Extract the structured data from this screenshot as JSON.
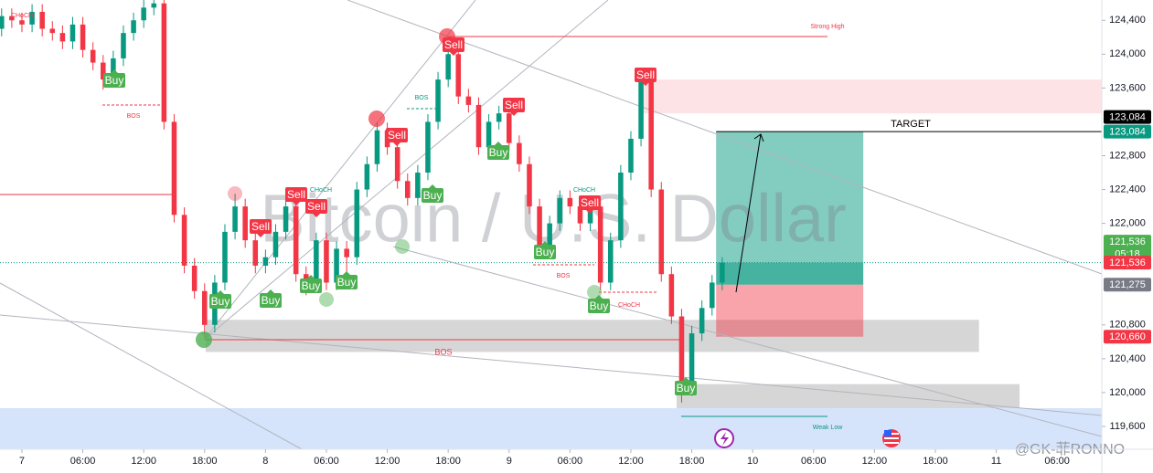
{
  "chart_data": {
    "type": "candlestick",
    "title": "Bitcoin / U.S. Dollar",
    "xlim": [
      -2.16,
      106.4
    ],
    "ylim": [
      119330,
      124640
    ],
    "xticks": [
      {
        "value": 0,
        "label": "7"
      },
      {
        "value": 6,
        "label": "06:00"
      },
      {
        "value": 12,
        "label": "12:00"
      },
      {
        "value": 18,
        "label": "18:00"
      },
      {
        "value": 24,
        "label": "8"
      },
      {
        "value": 30,
        "label": "06:00"
      },
      {
        "value": 36,
        "label": "12:00"
      },
      {
        "value": 42,
        "label": "18:00"
      },
      {
        "value": 48,
        "label": "9"
      },
      {
        "value": 54,
        "label": "06:00"
      },
      {
        "value": 60,
        "label": "12:00"
      },
      {
        "value": 66,
        "label": "18:00"
      },
      {
        "value": 72,
        "label": "10"
      },
      {
        "value": 78,
        "label": "06:00"
      },
      {
        "value": 84,
        "label": "12:00"
      },
      {
        "value": 90,
        "label": "18:00"
      },
      {
        "value": 96,
        "label": "11"
      },
      {
        "value": 102,
        "label": "06:00"
      }
    ],
    "yticks": [
      {
        "value": 124400,
        "label": "124,400"
      },
      {
        "value": 124000,
        "label": "124,000"
      },
      {
        "value": 123600,
        "label": "123,600"
      },
      {
        "value": 122800,
        "label": "122,800"
      },
      {
        "value": 122400,
        "label": "122,400"
      },
      {
        "value": 122000,
        "label": "122,000"
      },
      {
        "value": 120800,
        "label": "120,800"
      },
      {
        "value": 120400,
        "label": "120,400"
      },
      {
        "value": 120000,
        "label": "120,000"
      },
      {
        "value": 119600,
        "label": "119,600"
      }
    ],
    "up_color": "#089981",
    "down_color": "#f23645",
    "x": [
      -2,
      -1,
      0,
      1,
      2,
      3,
      4,
      5,
      6,
      7,
      8,
      9,
      10,
      11,
      12,
      13,
      14,
      15,
      16,
      17,
      18,
      19,
      20,
      21,
      22,
      23,
      24,
      25,
      26,
      27,
      28,
      29,
      30,
      31,
      32,
      33,
      34,
      35,
      36,
      37,
      38,
      39,
      40,
      41,
      42,
      43,
      44,
      45,
      46,
      47,
      48,
      49,
      50,
      51,
      52,
      53,
      54,
      55,
      56,
      57,
      58,
      59,
      60,
      61,
      62,
      63,
      64,
      65,
      66,
      67,
      68,
      69
    ],
    "open": [
      124300,
      124450,
      124400,
      124350,
      124500,
      124300,
      124250,
      124150,
      124350,
      124050,
      123900,
      123700,
      123950,
      124250,
      124400,
      124550,
      124600,
      123200,
      122100,
      121500,
      121200,
      120800,
      121300,
      121900,
      122200,
      121800,
      121500,
      121600,
      121900,
      122200,
      121400,
      121300,
      121800,
      121300,
      121700,
      121600,
      122400,
      122700,
      123100,
      122900,
      122500,
      122300,
      122600,
      123200,
      123700,
      124000,
      123500,
      123400,
      122900,
      123200,
      123300,
      122950,
      122700,
      122200,
      121700,
      122000,
      122300,
      122200,
      122000,
      122200,
      121300,
      121800,
      122600,
      123000,
      123700,
      122400,
      121400,
      120900,
      120050,
      120700,
      121000,
      121300
    ],
    "high": [
      124540,
      124540,
      124490,
      124590,
      124590,
      124390,
      124340,
      124440,
      124440,
      124140,
      123990,
      124040,
      124340,
      124490,
      124640,
      124690,
      124690,
      123290,
      122190,
      121590,
      121290,
      121390,
      121990,
      122350,
      122290,
      121890,
      121690,
      121990,
      122290,
      122290,
      121490,
      121890,
      121890,
      121790,
      121790,
      122490,
      122790,
      123190,
      123190,
      122990,
      122590,
      122690,
      123290,
      123790,
      124150,
      124090,
      123590,
      123490,
      123290,
      123390,
      123390,
      123040,
      122790,
      122290,
      122090,
      122390,
      122390,
      122290,
      122290,
      122290,
      121890,
      122690,
      123090,
      123790,
      123790,
      122490,
      121490,
      120990,
      120790,
      121090,
      121390,
      121600
    ],
    "low": [
      124210,
      124310,
      124260,
      124260,
      124210,
      124160,
      124060,
      124060,
      123960,
      123810,
      123580,
      123610,
      123860,
      124160,
      124310,
      124460,
      123110,
      122010,
      121410,
      121110,
      120650,
      120710,
      121210,
      121810,
      121710,
      121410,
      121410,
      121510,
      121810,
      121310,
      121150,
      121210,
      121210,
      121210,
      121400,
      121510,
      122310,
      122610,
      122810,
      122410,
      122210,
      122210,
      122510,
      123110,
      123610,
      123410,
      123310,
      122810,
      122810,
      123110,
      122860,
      122610,
      122110,
      121610,
      121610,
      121910,
      122110,
      121910,
      121910,
      121210,
      121210,
      121710,
      122510,
      122910,
      122310,
      121310,
      120810,
      119880,
      119960,
      120610,
      120910,
      121210
    ],
    "close": [
      124450,
      124400,
      124350,
      124500,
      124300,
      124250,
      124150,
      124350,
      124050,
      123900,
      123700,
      123950,
      124250,
      124400,
      124550,
      124600,
      123200,
      122100,
      121500,
      121200,
      120800,
      121300,
      121900,
      122200,
      121800,
      121500,
      121600,
      121900,
      122200,
      121400,
      121300,
      121800,
      121300,
      121700,
      121600,
      122400,
      122700,
      123100,
      122900,
      122500,
      122300,
      122600,
      123200,
      123700,
      124000,
      123500,
      123400,
      122900,
      123200,
      123300,
      122950,
      122700,
      122200,
      121700,
      122000,
      122300,
      122200,
      122000,
      122200,
      121300,
      121800,
      122600,
      123000,
      123700,
      122400,
      121400,
      120900,
      120050,
      120700,
      121000,
      121300,
      121536
    ],
    "price_labels": [
      {
        "value": 123084,
        "label": "123,084",
        "color": "#000000"
      },
      {
        "value": 123084,
        "label": "123,084",
        "color": "#089981"
      },
      {
        "value": 121536,
        "label": "121,536",
        "color": "#4caf50",
        "countdown": "05:18"
      },
      {
        "value": 121536,
        "label": "121,536",
        "color": "#f23645"
      },
      {
        "value": 121275,
        "label": "121,275",
        "color": "#787b86"
      },
      {
        "value": 120660,
        "label": "120,660",
        "color": "#f23645"
      }
    ],
    "position": {
      "x0": 68.4,
      "x1": 82.9,
      "target": 123084,
      "entry": 121275,
      "stop": 120660,
      "current": 121536
    },
    "zones": [
      {
        "x0": 60.9,
        "x1": 106.4,
        "top": 123700,
        "bottom": 123300,
        "color": "#fde3e5"
      },
      {
        "x0": 18.1,
        "x1": 94.3,
        "top": 120860,
        "bottom": 120480,
        "color": "#d6d6d6"
      },
      {
        "x0": 64.5,
        "x1": 98.3,
        "top": 120100,
        "bottom": 119770,
        "color": "#d6d6d6"
      },
      {
        "x0": -2.16,
        "x1": 106.4,
        "top": 119816,
        "bottom": 119330,
        "color": "#d6e4fb"
      }
    ],
    "signals": [
      "Buy",
      "Buy",
      "Sell",
      "Buy",
      "Sell",
      "Buy",
      "Sell",
      "Buy",
      "Sell",
      "Buy",
      "Sell",
      "Buy",
      "Sell",
      "Buy",
      "Sell",
      "Buy",
      "Sell",
      "Buy"
    ],
    "annotations": [
      "CHoCH",
      "BOS",
      "Strong High",
      "CHoCH",
      "BOS",
      "CHoCH",
      "BOS",
      "CHoCH",
      "BOS",
      "Weak Low",
      "TARGET",
      "@GK-菲RONNO"
    ]
  }
}
